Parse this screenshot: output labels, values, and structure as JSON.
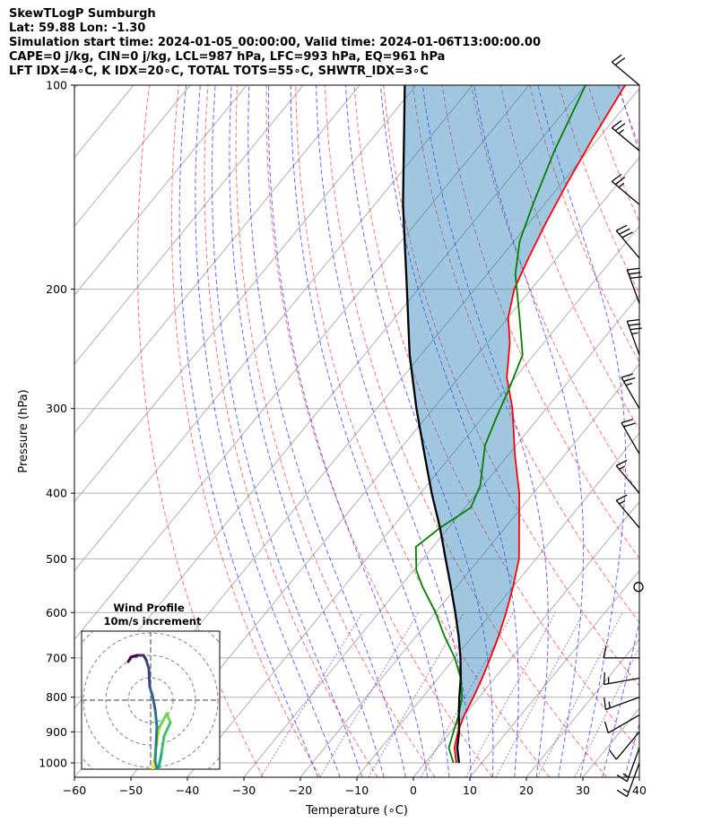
{
  "header": {
    "line1": "SkewTLogP Sumburgh",
    "line2": "Lat: 59.88   Lon: -1.30",
    "line3": "Simulation start time: 2024-01-05_00:00:00, Valid time: 2024-01-06T13:00:00.00",
    "line4": "CAPE=0 j/kg, CIN=0 j/kg, LCL=987 hPa, LFC=993 hPa, EQ=961 hPa",
    "line5": "LFT IDX=4∘C, K IDX=20∘C, TOTAL TOTS=55∘C, SHWTR_IDX=3∘C"
  },
  "hodograph": {
    "title1": "Wind Profile",
    "title2": "10m/s increment"
  },
  "chart_data": {
    "type": "line",
    "subtype": "skew-T log-P diagram",
    "xlabel": "Temperature (∘C)",
    "ylabel": "Pressure (hPa)",
    "xlim": [
      -60,
      40
    ],
    "ylim": [
      1050,
      100
    ],
    "yscale": "log",
    "x_ticks": [
      -60,
      -50,
      -40,
      -30,
      -20,
      -10,
      0,
      10,
      20,
      30,
      40
    ],
    "y_ticks": [
      100,
      200,
      300,
      400,
      500,
      600,
      700,
      800,
      900,
      1000
    ],
    "grid": true,
    "series": [
      {
        "role": "temperature",
        "color": "#ff0000",
        "points": [
          [
            1000,
            5.5
          ],
          [
            950,
            3.0
          ],
          [
            900,
            1.3
          ],
          [
            850,
            0.0
          ],
          [
            800,
            -1.0
          ],
          [
            750,
            -2.2
          ],
          [
            700,
            -3.7
          ],
          [
            650,
            -5.4
          ],
          [
            600,
            -7.5
          ],
          [
            550,
            -10.0
          ],
          [
            500,
            -13.0
          ],
          [
            450,
            -17.5
          ],
          [
            400,
            -22.5
          ],
          [
            380,
            -25.0
          ],
          [
            350,
            -29.0
          ],
          [
            300,
            -36.0
          ],
          [
            270,
            -41.5
          ],
          [
            240,
            -46.0
          ],
          [
            220,
            -50.0
          ],
          [
            200,
            -53.0
          ],
          [
            180,
            -55.0
          ],
          [
            160,
            -57.0
          ],
          [
            140,
            -59.0
          ],
          [
            120,
            -61.0
          ],
          [
            100,
            -63.0
          ]
        ]
      },
      {
        "role": "dewpoint",
        "color": "#008000",
        "points": [
          [
            1000,
            5.0
          ],
          [
            950,
            2.0
          ],
          [
            900,
            0.5
          ],
          [
            850,
            -1.0
          ],
          [
            800,
            -3.0
          ],
          [
            750,
            -6.0
          ],
          [
            700,
            -10.0
          ],
          [
            650,
            -15.0
          ],
          [
            600,
            -20.0
          ],
          [
            550,
            -26.0
          ],
          [
            520,
            -29.5
          ],
          [
            480,
            -33.0
          ],
          [
            450,
            -31.5
          ],
          [
            420,
            -29.0
          ],
          [
            390,
            -30.5
          ],
          [
            340,
            -35.5
          ],
          [
            310,
            -37.5
          ],
          [
            280,
            -39.5
          ],
          [
            250,
            -42.0
          ],
          [
            220,
            -48.0
          ],
          [
            190,
            -55.0
          ],
          [
            170,
            -59.0
          ],
          [
            150,
            -62.0
          ],
          [
            125,
            -66.0
          ],
          [
            100,
            -70.0
          ]
        ]
      },
      {
        "role": "parcel",
        "color": "#000000",
        "points": [
          [
            1000,
            6.0
          ],
          [
            950,
            3.5
          ],
          [
            900,
            1.5
          ],
          [
            850,
            -1.0
          ],
          [
            800,
            -3.5
          ],
          [
            750,
            -6.0
          ],
          [
            700,
            -9.0
          ],
          [
            650,
            -12.5
          ],
          [
            600,
            -16.5
          ],
          [
            550,
            -21.0
          ],
          [
            500,
            -26.0
          ],
          [
            450,
            -31.5
          ],
          [
            400,
            -38.0
          ],
          [
            350,
            -45.0
          ],
          [
            300,
            -53.0
          ],
          [
            250,
            -62.0
          ],
          [
            200,
            -72.0
          ],
          [
            150,
            -85.0
          ],
          [
            100,
            -102.0
          ]
        ]
      }
    ],
    "wind_barbs": [
      {
        "p": 1000,
        "kt": 15,
        "dir": 200
      },
      {
        "p": 950,
        "kt": 15,
        "dir": 200
      },
      {
        "p": 900,
        "kt": 10,
        "dir": 220
      },
      {
        "p": 850,
        "kt": 10,
        "dir": 240
      },
      {
        "p": 800,
        "kt": 15,
        "dir": 250
      },
      {
        "p": 750,
        "kt": 15,
        "dir": 260
      },
      {
        "p": 700,
        "kt": 10,
        "dir": 270
      },
      {
        "p": 550,
        "kt": 0,
        "dir": 0
      },
      {
        "p": 450,
        "kt": 15,
        "dir": 320
      },
      {
        "p": 400,
        "kt": 15,
        "dir": 320
      },
      {
        "p": 350,
        "kt": 20,
        "dir": 330
      },
      {
        "p": 300,
        "kt": 25,
        "dir": 330
      },
      {
        "p": 250,
        "kt": 35,
        "dir": 340
      },
      {
        "p": 210,
        "kt": 30,
        "dir": 340
      },
      {
        "p": 180,
        "kt": 30,
        "dir": 320
      },
      {
        "p": 150,
        "kt": 25,
        "dir": 310
      },
      {
        "p": 125,
        "kt": 25,
        "dir": 310
      },
      {
        "p": 100,
        "kt": 20,
        "dir": 310
      }
    ],
    "hodograph_points": [
      [
        0,
        -10
      ],
      [
        0.2,
        -8
      ],
      [
        0.5,
        -6
      ],
      [
        0.8,
        -4
      ],
      [
        1.0,
        -3
      ],
      [
        1.8,
        -1.5
      ],
      [
        2.2,
        -2.5
      ],
      [
        1.5,
        -4
      ],
      [
        1.2,
        -6
      ],
      [
        1.0,
        -7
      ],
      [
        0.8,
        -8
      ],
      [
        0.5,
        -6.8
      ],
      [
        0.6,
        -5
      ],
      [
        0.7,
        -3
      ],
      [
        0.5,
        -1
      ],
      [
        0.2,
        0.5
      ],
      [
        -0.1,
        1.5
      ],
      [
        -0.2,
        3.5
      ],
      [
        -0.5,
        4.5
      ],
      [
        -0.8,
        5
      ],
      [
        -1.5,
        5
      ],
      [
        -2.2,
        4.8
      ],
      [
        -2.5,
        4.3
      ]
    ]
  }
}
